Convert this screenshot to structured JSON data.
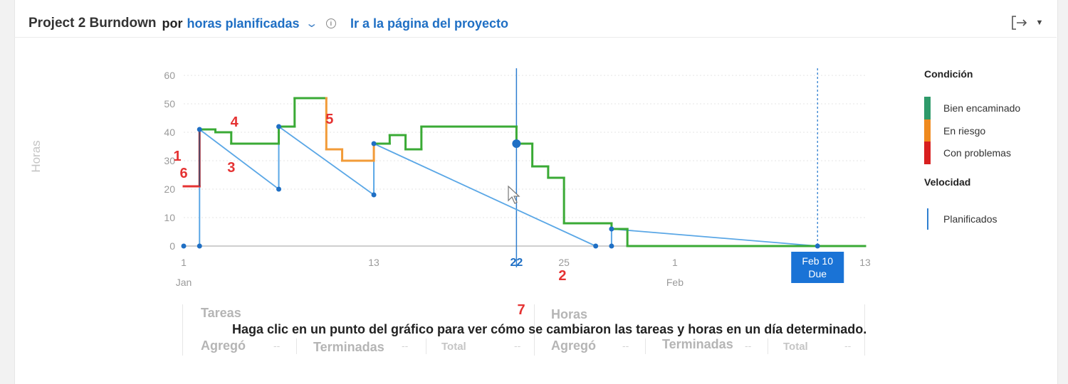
{
  "header": {
    "title": "Project 2 Burndown",
    "por": "por",
    "metric": "horas planificadas",
    "link": "Ir a la página del proyecto"
  },
  "colors": {
    "on_track": "#3aaa35",
    "at_risk": "#f29b38",
    "problem": "#e53232",
    "velocity": "#5aa7e6",
    "accent": "#1f6fc4"
  },
  "icons": {
    "dropdown": "chevron-down-icon",
    "info": "info-icon",
    "export": "export-icon",
    "export_menu": "caret-down-icon",
    "cursor": "mouse-pointer-icon"
  },
  "legend": {
    "condition_title": "Condición",
    "items": [
      {
        "label": "Bien encaminado",
        "color": "#2e9a6a"
      },
      {
        "label": "En riesgo",
        "color": "#ef8a1e"
      },
      {
        "label": "Con problemas",
        "color": "#d81f1f"
      }
    ],
    "velocity_title": "Velocidad",
    "velocity_item": "Planificados"
  },
  "chart_data": {
    "type": "line",
    "ylabel": "Horas",
    "ylim": [
      0,
      60
    ],
    "yticks": [
      0,
      10,
      20,
      30,
      40,
      50,
      60
    ],
    "x_unit": "days (January 1 = 1)",
    "xlim": [
      1,
      44
    ],
    "xticks": [
      {
        "x": 1,
        "label": "1",
        "sub": "Jan"
      },
      {
        "x": 13,
        "label": "13",
        "sub": ""
      },
      {
        "x": 22,
        "label": "22",
        "sub": "",
        "selected": true
      },
      {
        "x": 25,
        "label": "25",
        "sub": ""
      },
      {
        "x": 32,
        "label": "1",
        "sub": "Feb"
      },
      {
        "x": 41,
        "label": "Feb 10",
        "sub": "Due",
        "due": true
      },
      {
        "x": 44,
        "label": "13",
        "sub": ""
      }
    ],
    "selected_day": 22,
    "due_day": 41,
    "remaining_hours": [
      {
        "x": 1,
        "y": 21,
        "status": "problem"
      },
      {
        "x": 2,
        "y": 21,
        "status": "problem"
      },
      {
        "x": 2,
        "y": 41,
        "status": "on_track"
      },
      {
        "x": 3,
        "y": 41,
        "status": "on_track"
      },
      {
        "x": 3,
        "y": 40,
        "status": "on_track"
      },
      {
        "x": 4,
        "y": 40,
        "status": "on_track"
      },
      {
        "x": 4,
        "y": 36,
        "status": "on_track"
      },
      {
        "x": 7,
        "y": 36,
        "status": "on_track"
      },
      {
        "x": 7,
        "y": 42,
        "status": "on_track"
      },
      {
        "x": 8,
        "y": 42,
        "status": "on_track"
      },
      {
        "x": 8,
        "y": 52,
        "status": "on_track"
      },
      {
        "x": 10,
        "y": 52,
        "status": "at_risk"
      },
      {
        "x": 10,
        "y": 34,
        "status": "at_risk"
      },
      {
        "x": 11,
        "y": 34,
        "status": "at_risk"
      },
      {
        "x": 11,
        "y": 30,
        "status": "at_risk"
      },
      {
        "x": 13,
        "y": 30,
        "status": "at_risk"
      },
      {
        "x": 13,
        "y": 36,
        "status": "on_track"
      },
      {
        "x": 14,
        "y": 36,
        "status": "on_track"
      },
      {
        "x": 14,
        "y": 39,
        "status": "on_track"
      },
      {
        "x": 15,
        "y": 39,
        "status": "on_track"
      },
      {
        "x": 15,
        "y": 34,
        "status": "on_track"
      },
      {
        "x": 16,
        "y": 34,
        "status": "on_track"
      },
      {
        "x": 16,
        "y": 42,
        "status": "on_track"
      },
      {
        "x": 22,
        "y": 42,
        "status": "on_track"
      },
      {
        "x": 22,
        "y": 36,
        "status": "on_track"
      },
      {
        "x": 23,
        "y": 36,
        "status": "on_track"
      },
      {
        "x": 23,
        "y": 28,
        "status": "on_track"
      },
      {
        "x": 24,
        "y": 28,
        "status": "on_track"
      },
      {
        "x": 24,
        "y": 24,
        "status": "on_track"
      },
      {
        "x": 25,
        "y": 24,
        "status": "on_track"
      },
      {
        "x": 25,
        "y": 8,
        "status": "on_track"
      },
      {
        "x": 28,
        "y": 8,
        "status": "on_track"
      },
      {
        "x": 28,
        "y": 6,
        "status": "on_track"
      },
      {
        "x": 29,
        "y": 6,
        "status": "on_track"
      },
      {
        "x": 29,
        "y": 0,
        "status": "on_track"
      },
      {
        "x": 44,
        "y": 0,
        "status": "on_track"
      }
    ],
    "velocity_segments": [
      {
        "x1": 2,
        "y1": 41,
        "x2": 7,
        "y2": 20
      },
      {
        "x1": 7,
        "y1": 42,
        "x2": 13,
        "y2": 18
      },
      {
        "x1": 13,
        "y1": 36,
        "x2": 27,
        "y2": 0
      },
      {
        "x1": 28,
        "y1": 6,
        "x2": 41,
        "y2": 0
      }
    ],
    "velocity_verticals": [
      {
        "x": 2,
        "y1": 0,
        "y2": 41
      },
      {
        "x": 7,
        "y1": 20,
        "y2": 42
      },
      {
        "x": 13,
        "y1": 18,
        "y2": 36
      },
      {
        "x": 28,
        "y1": 0,
        "y2": 6
      }
    ],
    "velocity_points": [
      {
        "x": 2,
        "y": 41
      },
      {
        "x": 7,
        "y": 20
      },
      {
        "x": 7,
        "y": 42
      },
      {
        "x": 13,
        "y": 18
      },
      {
        "x": 13,
        "y": 36
      },
      {
        "x": 22,
        "y": 36
      },
      {
        "x": 28,
        "y": 6
      },
      {
        "x": 28,
        "y": 0
      },
      {
        "x": 27,
        "y": 0
      },
      {
        "x": 2,
        "y": 0
      },
      {
        "x": 1,
        "y": 0
      },
      {
        "x": 41,
        "y": 0
      }
    ],
    "annotations": [
      {
        "text": "1",
        "x": 0.6,
        "y": 30
      },
      {
        "text": "2",
        "x": 24.9,
        "y": -12
      },
      {
        "text": "3",
        "x": 4.0,
        "y": 26
      },
      {
        "text": "4",
        "x": 4.2,
        "y": 42
      },
      {
        "text": "5",
        "x": 10.2,
        "y": 43
      },
      {
        "text": "6",
        "x": 1.0,
        "y": 24
      },
      {
        "text": "7",
        "x": 22.3,
        "y": -24
      }
    ]
  },
  "stats": {
    "tasks_title": "Tareas",
    "hours_title": "Horas",
    "added": "Agregó",
    "done": "Terminadas",
    "total": "Total",
    "dash": "--",
    "message": "Haga clic en un punto del gráfico para ver cómo se cambiaron las tareas y horas en un día determinado."
  }
}
